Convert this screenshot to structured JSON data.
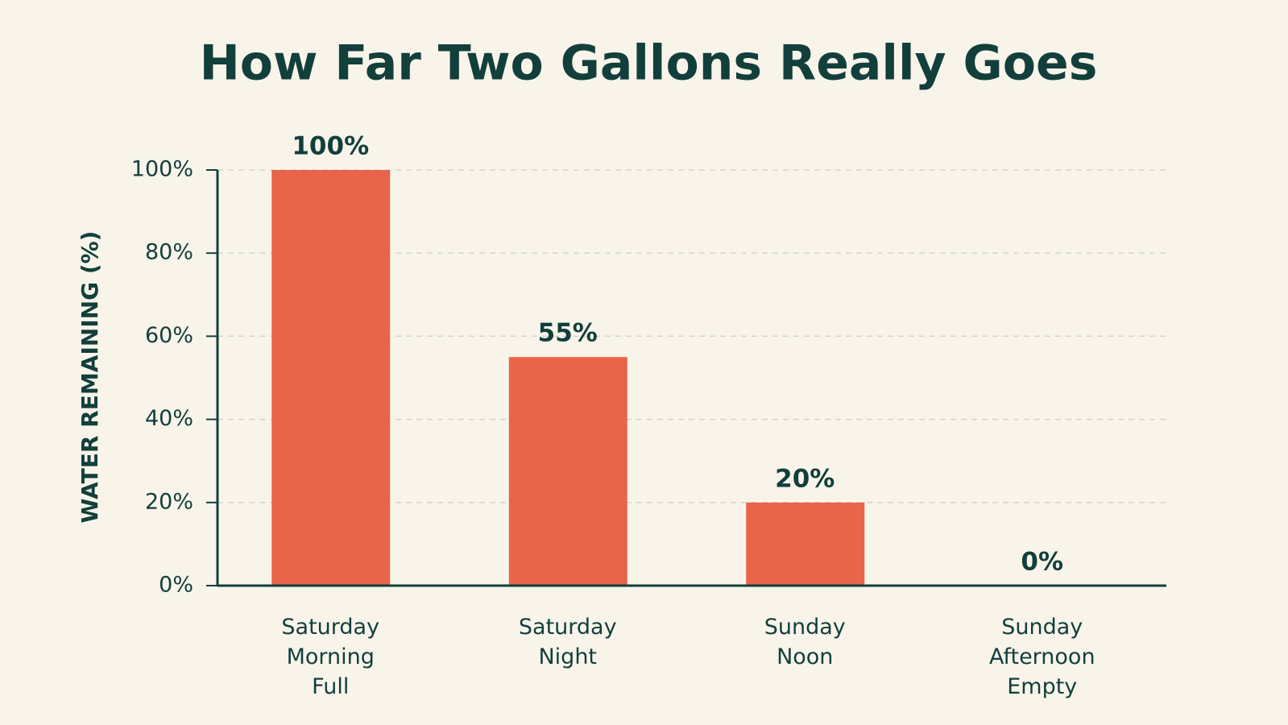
{
  "chart_data": {
    "type": "bar",
    "title": "How Far Two Gallons Really Goes",
    "y_label": "WATER REMAINING (%)",
    "categories": [
      "Saturday Morning Full",
      "Saturday Night",
      "Sunday Noon",
      "Sunday Afternoon Empty"
    ],
    "values": [
      100,
      55,
      20,
      0
    ],
    "value_labels": [
      "100%",
      "55%",
      "20%",
      "0%"
    ],
    "color": "#e8654a",
    "ylim": [
      0,
      100
    ],
    "yticks": [
      {
        "value": 0,
        "label": "0%"
      },
      {
        "value": 20,
        "label": "20%"
      },
      {
        "value": 40,
        "label": "40%"
      },
      {
        "value": 60,
        "label": "60%"
      },
      {
        "value": 80,
        "label": "80%"
      },
      {
        "value": 100,
        "label": "100%"
      }
    ],
    "grid": true
  }
}
